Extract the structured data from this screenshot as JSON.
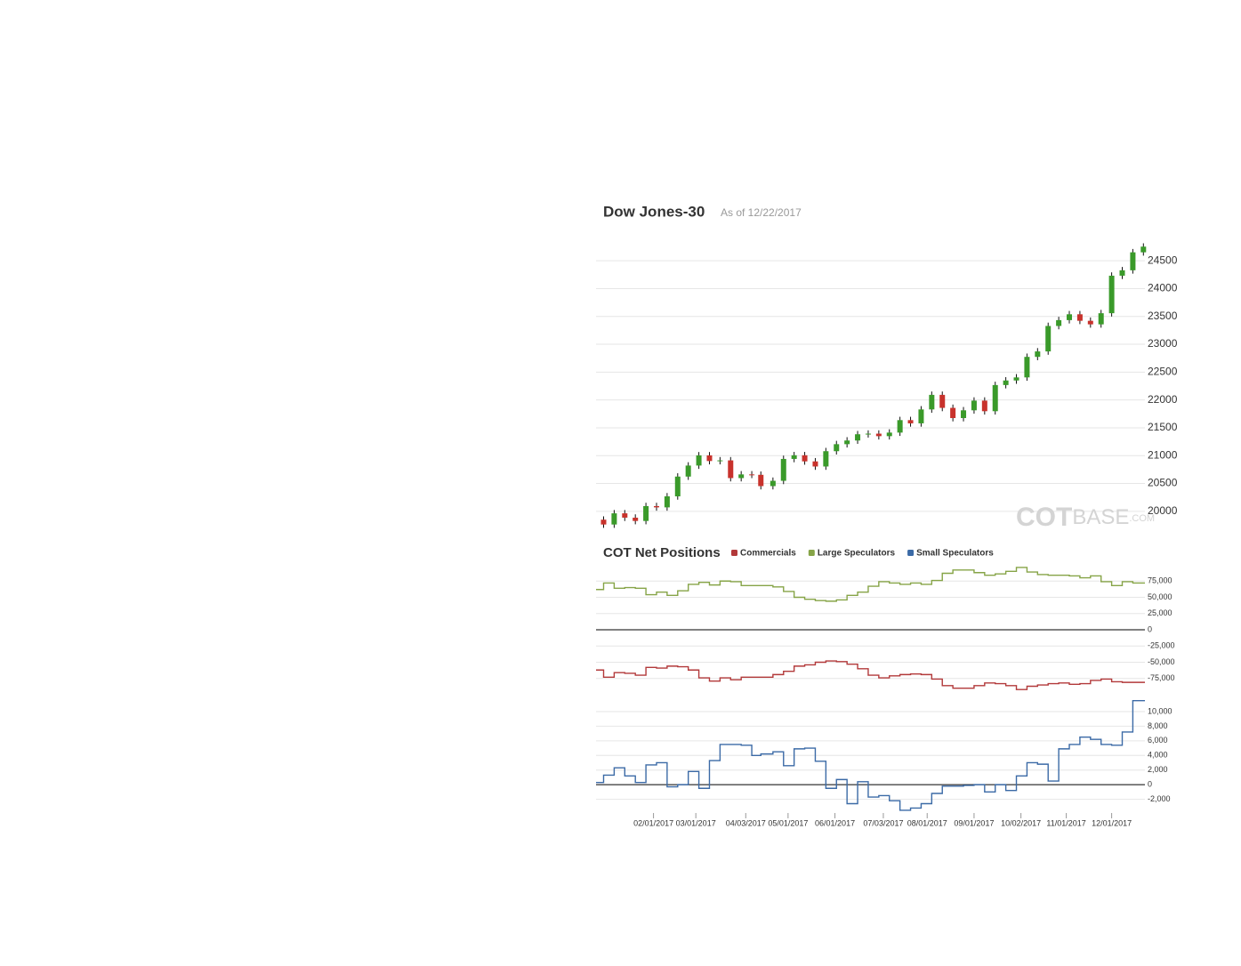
{
  "chart_data": [
    {
      "type": "candlestick",
      "title": "Dow Jones-30",
      "subtitle": "As of 12/22/2017",
      "x": [
        "12/30/2016",
        "01/06/2017",
        "01/13/2017",
        "01/20/2017",
        "01/27/2017",
        "02/03/2017",
        "02/10/2017",
        "02/17/2017",
        "02/24/2017",
        "03/03/2017",
        "03/10/2017",
        "03/17/2017",
        "03/24/2017",
        "03/31/2017",
        "04/07/2017",
        "04/13/2017",
        "04/21/2017",
        "04/28/2017",
        "05/05/2017",
        "05/12/2017",
        "05/19/2017",
        "05/26/2017",
        "06/02/2017",
        "06/09/2017",
        "06/16/2017",
        "06/23/2017",
        "06/30/2017",
        "07/07/2017",
        "07/14/2017",
        "07/21/2017",
        "07/28/2017",
        "08/04/2017",
        "08/11/2017",
        "08/18/2017",
        "08/25/2017",
        "09/01/2017",
        "09/08/2017",
        "09/15/2017",
        "09/22/2017",
        "09/29/2017",
        "10/06/2017",
        "10/13/2017",
        "10/20/2017",
        "10/27/2017",
        "11/03/2017",
        "11/10/2017",
        "11/17/2017",
        "11/24/2017",
        "12/01/2017",
        "12/08/2017",
        "12/15/2017",
        "12/22/2017"
      ],
      "open": [
        19850,
        19763,
        19964,
        19886,
        19827,
        20094,
        20071,
        20269,
        20624,
        20822,
        21005,
        20903,
        20915,
        20597,
        20663,
        20656,
        20453,
        20548,
        20941,
        21007,
        20897,
        20805,
        21080,
        21206,
        21272,
        21384,
        21395,
        21350,
        21414,
        21638,
        21580,
        21830,
        22092,
        21858,
        21675,
        21814,
        21988,
        21798,
        22268,
        22350,
        22405,
        22774,
        22872,
        23329,
        23434,
        23539,
        23422,
        23358,
        23558,
        24232,
        24329,
        24652
      ],
      "high": [
        19910,
        20024,
        20024,
        19946,
        20154,
        20154,
        20329,
        20684,
        20882,
        21065,
        21065,
        20975,
        20975,
        20723,
        20723,
        20716,
        20608,
        21001,
        21067,
        21067,
        20957,
        21140,
        21266,
        21332,
        21444,
        21455,
        21455,
        21474,
        21698,
        21698,
        21890,
        22152,
        22152,
        21918,
        21874,
        22048,
        22048,
        22328,
        22410,
        22465,
        22834,
        22932,
        23389,
        23494,
        23599,
        23599,
        23482,
        23618,
        24292,
        24389,
        24712,
        24814
      ],
      "low": [
        19703,
        19703,
        19826,
        19767,
        19767,
        20011,
        20011,
        20209,
        20564,
        20762,
        20843,
        20843,
        20537,
        20537,
        20596,
        20393,
        20393,
        20488,
        20881,
        20837,
        20745,
        20745,
        21020,
        21146,
        21212,
        21324,
        21290,
        21290,
        21354,
        21520,
        21520,
        21770,
        21798,
        21615,
        21615,
        21754,
        21738,
        21738,
        22208,
        22290,
        22345,
        22714,
        22812,
        23269,
        23374,
        23362,
        23298,
        23298,
        23498,
        24172,
        24269,
        24592
      ],
      "close": [
        19763,
        19964,
        19886,
        19827,
        20094,
        20071,
        20269,
        20624,
        20822,
        21005,
        20903,
        20915,
        20597,
        20663,
        20656,
        20453,
        20548,
        20941,
        21007,
        20897,
        20805,
        21080,
        21206,
        21272,
        21384,
        21395,
        21350,
        21414,
        21638,
        21580,
        21830,
        22092,
        21858,
        21675,
        21814,
        21988,
        21798,
        22268,
        22350,
        22405,
        22774,
        22872,
        23329,
        23434,
        23539,
        23422,
        23358,
        23558,
        24232,
        24329,
        24652,
        24754
      ],
      "up_color": "#3a9a2a",
      "down_color": "#c8322c",
      "xlim": [
        "12/25/2016",
        "12/23/2017"
      ],
      "ylim": [
        19630,
        24950
      ],
      "yticks": [
        20000,
        20500,
        21000,
        21500,
        22000,
        22500,
        23000,
        23500,
        24000,
        24500
      ],
      "grid": true,
      "watermark": [
        "COT",
        "BASE",
        ".COM"
      ]
    },
    {
      "type": "step",
      "title": "COT Net Positions",
      "x": [
        "12/30/2016",
        "01/06/2017",
        "01/13/2017",
        "01/20/2017",
        "01/27/2017",
        "02/03/2017",
        "02/10/2017",
        "02/17/2017",
        "02/24/2017",
        "03/03/2017",
        "03/10/2017",
        "03/17/2017",
        "03/24/2017",
        "03/31/2017",
        "04/07/2017",
        "04/13/2017",
        "04/21/2017",
        "04/28/2017",
        "05/05/2017",
        "05/12/2017",
        "05/19/2017",
        "05/26/2017",
        "06/02/2017",
        "06/09/2017",
        "06/16/2017",
        "06/23/2017",
        "06/30/2017",
        "07/07/2017",
        "07/14/2017",
        "07/21/2017",
        "07/28/2017",
        "08/04/2017",
        "08/11/2017",
        "08/18/2017",
        "08/25/2017",
        "09/01/2017",
        "09/08/2017",
        "09/15/2017",
        "09/22/2017",
        "09/29/2017",
        "10/06/2017",
        "10/13/2017",
        "10/20/2017",
        "10/27/2017",
        "11/03/2017",
        "11/10/2017",
        "11/17/2017",
        "11/24/2017",
        "12/01/2017",
        "12/08/2017",
        "12/15/2017",
        "12/22/2017"
      ],
      "series": [
        {
          "name": "Commercials",
          "color": "#b2393a",
          "values": [
            -62000,
            -73000,
            -66000,
            -67000,
            -70000,
            -58000,
            -59000,
            -56000,
            -57000,
            -62000,
            -74000,
            -79000,
            -74000,
            -77000,
            -73000,
            -73000,
            -73000,
            -69000,
            -64000,
            -56000,
            -54000,
            -50000,
            -48000,
            -49000,
            -53000,
            -60000,
            -70000,
            -74000,
            -71000,
            -69000,
            -68000,
            -69000,
            -76000,
            -86000,
            -90000,
            -90000,
            -86000,
            -82000,
            -83000,
            -86000,
            -92000,
            -87000,
            -85000,
            -83000,
            -82000,
            -84000,
            -83000,
            -78000,
            -76000,
            -80000,
            -81000,
            -81000
          ]
        },
        {
          "name": "Large Speculators",
          "color": "#86a447",
          "values": [
            62000,
            72000,
            64000,
            65000,
            64000,
            54000,
            58000,
            53000,
            60000,
            70000,
            73000,
            69000,
            75000,
            74000,
            68000,
            68000,
            68000,
            66000,
            59000,
            50000,
            47000,
            45000,
            44000,
            46000,
            53000,
            58000,
            67000,
            74000,
            72000,
            70000,
            72000,
            70000,
            76000,
            87000,
            92000,
            92000,
            88000,
            84000,
            86000,
            90000,
            96000,
            89000,
            85000,
            84000,
            84000,
            83000,
            80000,
            83000,
            74000,
            68000,
            74000,
            72000
          ]
        },
        {
          "name": "Small Speculators",
          "color": "#3b6aa6",
          "axis": "y2",
          "values": [
            300,
            1300,
            2300,
            1200,
            300,
            2700,
            3000,
            -300,
            0,
            1800,
            -500,
            3300,
            5500,
            5500,
            5400,
            4000,
            4200,
            4500,
            2600,
            4900,
            5000,
            3200,
            -500,
            700,
            -2600,
            400,
            -1700,
            -1500,
            -2200,
            -3500,
            -3200,
            -2600,
            -1200,
            -200,
            -200,
            -100,
            0,
            -1000,
            0,
            -800,
            1200,
            3000,
            2800,
            500,
            4900,
            5500,
            6500,
            6200,
            5500,
            5400,
            7200,
            11500
          ]
        }
      ],
      "xlim": [
        "12/25/2016",
        "12/23/2017"
      ],
      "xticks": [
        "02/01/2017",
        "03/01/2017",
        "04/03/2017",
        "05/01/2017",
        "06/01/2017",
        "07/03/2017",
        "08/01/2017",
        "09/01/2017",
        "10/02/2017",
        "11/01/2017",
        "12/01/2017"
      ],
      "ylim": [
        -100000,
        100000
      ],
      "yticks": [
        {
          "value": -75000,
          "label": "-75,000"
        },
        {
          "value": -50000,
          "label": "-50,000"
        },
        {
          "value": -25000,
          "label": "-25,000"
        },
        0,
        {
          "value": 25000,
          "label": "25,000"
        },
        {
          "value": 50000,
          "label": "50,000"
        },
        {
          "value": 75000,
          "label": "75,000"
        }
      ],
      "y2lim": [
        -4000,
        11700
      ],
      "y2ticks": [
        {
          "value": -2000,
          "label": "-2,000"
        },
        0,
        {
          "value": 2000,
          "label": "2,000"
        },
        {
          "value": 4000,
          "label": "4,000"
        },
        {
          "value": 6000,
          "label": "6,000"
        },
        {
          "value": 8000,
          "label": "8,000"
        },
        {
          "value": 10000,
          "label": "10,000"
        }
      ],
      "grid": true
    }
  ]
}
